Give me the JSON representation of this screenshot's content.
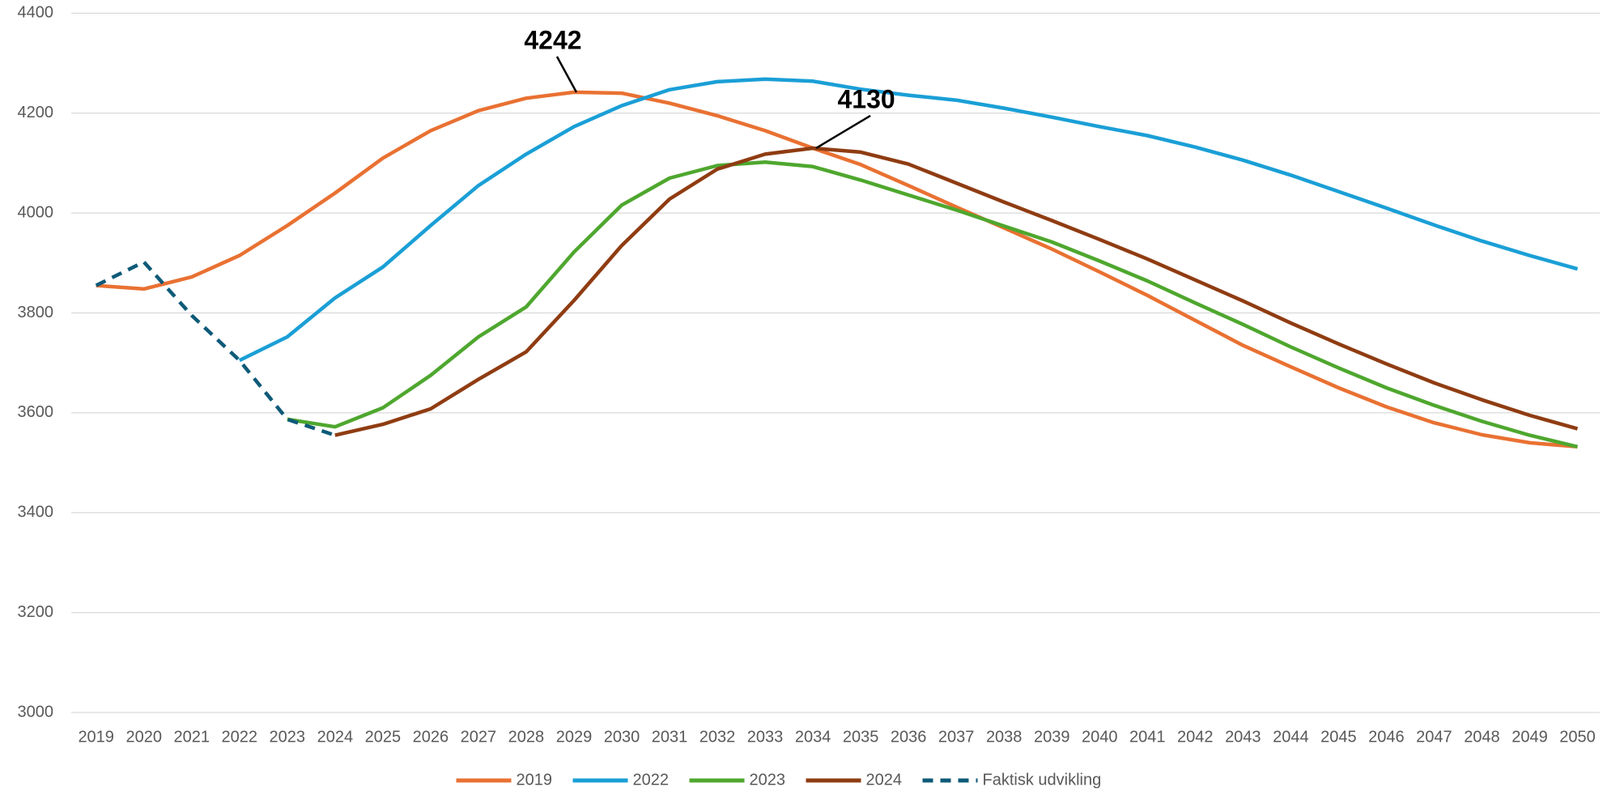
{
  "chart_data": {
    "type": "line",
    "categories": [
      "2019",
      "2020",
      "2021",
      "2022",
      "2023",
      "2024",
      "2025",
      "2026",
      "2027",
      "2028",
      "2029",
      "2030",
      "2031",
      "2032",
      "2033",
      "2034",
      "2035",
      "2036",
      "2037",
      "2038",
      "2039",
      "2040",
      "2041",
      "2042",
      "2043",
      "2044",
      "2045",
      "2046",
      "2047",
      "2048",
      "2049",
      "2050"
    ],
    "ylim": [
      3000,
      4400
    ],
    "yticks": [
      3000,
      3200,
      3400,
      3600,
      3800,
      4000,
      4200,
      4400
    ],
    "grid": true,
    "legend": "bottom",
    "series": [
      {
        "name": "2019",
        "color": "#e97132",
        "dashed": false,
        "values": [
          3855,
          3848,
          3872,
          3915,
          3975,
          4040,
          4110,
          4165,
          4205,
          4230,
          4242,
          4240,
          4220,
          4195,
          4165,
          4130,
          4097,
          4055,
          4012,
          3970,
          3928,
          3882,
          3835,
          3785,
          3735,
          3692,
          3650,
          3612,
          3580,
          3556,
          3540,
          3532
        ],
        "value_labels": [
          null,
          null,
          null,
          null,
          null,
          null,
          null,
          null,
          null,
          null,
          "4242",
          null,
          null,
          null,
          null,
          null,
          null,
          null,
          null,
          null,
          null,
          null,
          null,
          null,
          null,
          null,
          null,
          null,
          null,
          null,
          null,
          null
        ]
      },
      {
        "name": "2022",
        "color": "#1a9fd6",
        "dashed": false,
        "values": [
          null,
          null,
          null,
          3705,
          3752,
          3830,
          3892,
          3975,
          4055,
          4118,
          4173,
          4215,
          4247,
          4263,
          4268,
          4264,
          4248,
          4236,
          4226,
          4210,
          4192,
          4173,
          4155,
          4132,
          4106,
          4076,
          4043,
          4010,
          3976,
          3944,
          3915,
          3888
        ]
      },
      {
        "name": "2023",
        "color": "#4ea72e",
        "dashed": false,
        "values": [
          null,
          null,
          null,
          null,
          3587,
          3572,
          3610,
          3675,
          3752,
          3812,
          3922,
          4016,
          4070,
          4095,
          4102,
          4093,
          4066,
          4036,
          4006,
          3974,
          3942,
          3904,
          3864,
          3820,
          3777,
          3732,
          3690,
          3650,
          3615,
          3583,
          3555,
          3532
        ]
      },
      {
        "name": "2024",
        "color": "#8f3c12",
        "dashed": false,
        "values": [
          null,
          null,
          null,
          null,
          null,
          3555,
          3577,
          3608,
          3667,
          3722,
          3825,
          3935,
          4028,
          4088,
          4118,
          4130,
          4122,
          4098,
          4060,
          4022,
          3985,
          3947,
          3908,
          3866,
          3824,
          3780,
          3738,
          3698,
          3660,
          3626,
          3595,
          3568
        ],
        "value_labels": [
          null,
          null,
          null,
          null,
          null,
          null,
          null,
          null,
          null,
          null,
          null,
          null,
          null,
          null,
          null,
          "4130",
          null,
          null,
          null,
          null,
          null,
          null,
          null,
          null,
          null,
          null,
          null,
          null,
          null,
          null,
          null,
          null
        ]
      },
      {
        "name": "Faktisk udvikling",
        "color": "#0e5a78",
        "dashed": true,
        "values": [
          3855,
          3902,
          3795,
          3705,
          3587,
          3555,
          null,
          null,
          null,
          null,
          null,
          null,
          null,
          null,
          null,
          null,
          null,
          null,
          null,
          null,
          null,
          null,
          null,
          null,
          null,
          null,
          null,
          null,
          null,
          null,
          null,
          null
        ]
      }
    ]
  }
}
